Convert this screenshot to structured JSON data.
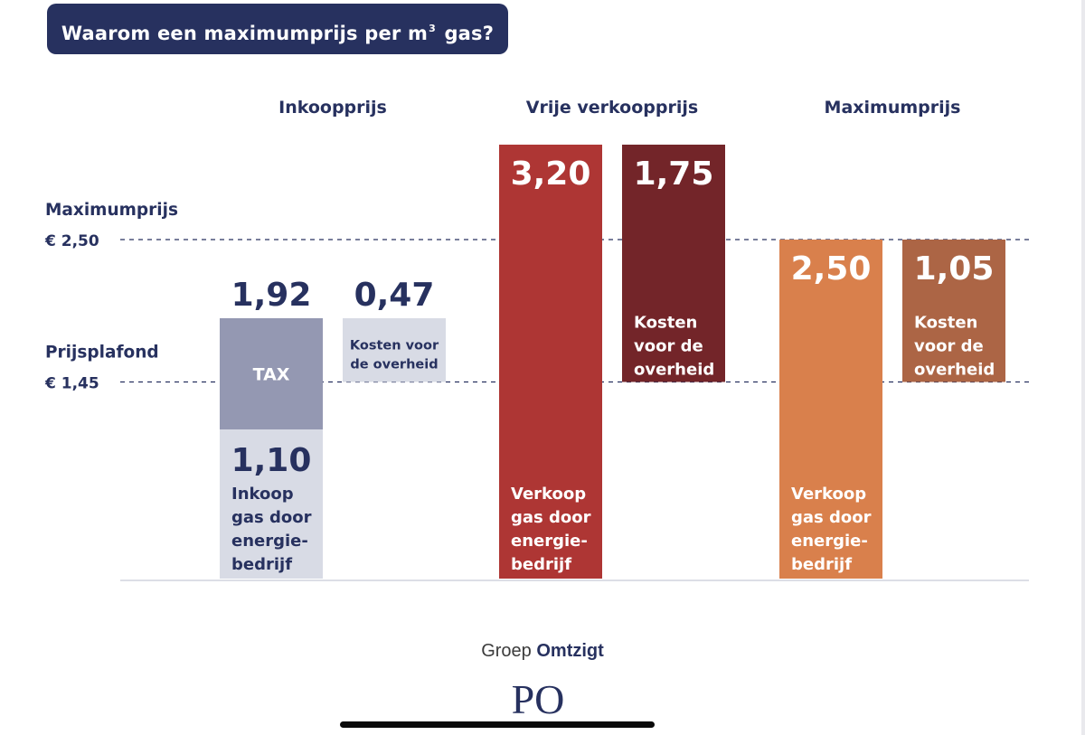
{
  "header": {
    "title_main": "Waarom een maximumprijs per m",
    "title_sup": "3",
    "title_end": " gas?"
  },
  "chart_data": {
    "type": "bar",
    "stacked": true,
    "title": "Waarom een maximumprijs per m³ gas?",
    "groups": [
      "Inkoopprijs",
      "Vrije verkoopprijs",
      "Maximumprijs"
    ],
    "ylim": [
      0,
      3.6
    ],
    "reference_lines": [
      {
        "label": "Maximumprijs",
        "value_label": "€ 2,50",
        "value": 2.5
      },
      {
        "label": "Prijsplafond",
        "value_label": "€ 1,45",
        "value": 1.45
      }
    ],
    "bars": [
      {
        "group": 0,
        "value": 1.92,
        "value_label": "1,92",
        "segments": [
          {
            "value": 1.1,
            "value_label": "1,10",
            "label": [
              "Inkoop",
              "gas door",
              "energie-",
              "bedrijf"
            ],
            "color": "#d8dbe5",
            "text_color": "#27315f"
          },
          {
            "value": 0.82,
            "value_label": "",
            "label": [
              "TAX"
            ],
            "color": "#9498b2",
            "text_color": "#ffffff"
          }
        ]
      },
      {
        "group": 0,
        "base": 1.45,
        "value": 0.47,
        "value_label": "0,47",
        "segments": [
          {
            "value": 0.47,
            "value_label": "",
            "label": [
              "Kosten voor",
              "de overheid"
            ],
            "color": "#d8dbe5",
            "text_color": "#27315f"
          }
        ]
      },
      {
        "group": 1,
        "value": 3.2,
        "value_label": "3,20",
        "inside_value": true,
        "segments": [
          {
            "value": 3.2,
            "value_label": "",
            "label": [
              "Verkoop",
              "gas door",
              "energie-",
              "bedrijf"
            ],
            "color": "#ae3634",
            "text_color": "#ffffff"
          }
        ]
      },
      {
        "group": 1,
        "base": 1.45,
        "value": 1.75,
        "value_label": "1,75",
        "inside_value": true,
        "segments": [
          {
            "value": 1.75,
            "value_label": "",
            "label": [
              "Kosten",
              "voor de",
              "overheid"
            ],
            "color": "#732529",
            "text_color": "#ffffff"
          }
        ]
      },
      {
        "group": 2,
        "value": 2.5,
        "value_label": "2,50",
        "inside_value": true,
        "segments": [
          {
            "value": 2.5,
            "value_label": "",
            "label": [
              "Verkoop",
              "gas door",
              "energie-",
              "bedrijf"
            ],
            "color": "#d9804c",
            "text_color": "#ffffff"
          }
        ]
      },
      {
        "group": 2,
        "base": 1.45,
        "value": 1.05,
        "value_label": "1,05",
        "inside_value": true,
        "segments": [
          {
            "value": 1.05,
            "value_label": "",
            "label": [
              "Kosten",
              "voor de",
              "overheid"
            ],
            "color": "#ac6545",
            "text_color": "#ffffff"
          }
        ]
      }
    ]
  },
  "footer": {
    "label_prefix": "Groep ",
    "label_bold": "Omtzigt",
    "logo": "PO"
  },
  "colors": {
    "navy": "#27315f",
    "dash": "#27315f",
    "axis": "#d0d3de"
  }
}
